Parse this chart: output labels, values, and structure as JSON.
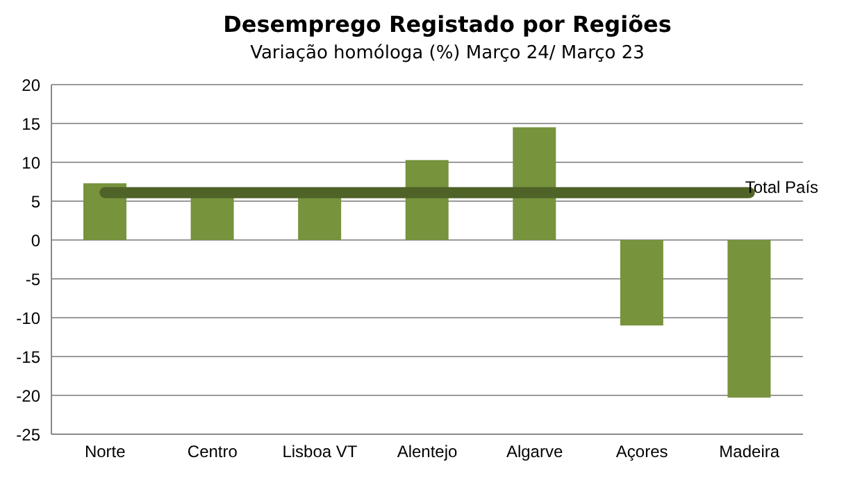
{
  "chart_data": {
    "type": "bar",
    "title": "Desemprego Registado por Regiões",
    "subtitle": "Variação homóloga (%) Março 24/ Março 23",
    "categories": [
      "Norte",
      "Centro",
      "Lisboa VT",
      "Alentejo",
      "Algarve",
      "Açores",
      "Madeira"
    ],
    "values": [
      7.3,
      5.8,
      5.8,
      10.3,
      14.5,
      -11,
      -20.3
    ],
    "color": "#77933c",
    "ylim": [
      -25,
      20
    ],
    "yticks": [
      -25,
      -20,
      -15,
      -10,
      -5,
      0,
      5,
      10,
      15,
      20
    ],
    "grid": "y",
    "legend": false,
    "ref_lines": [
      {
        "axis": "y",
        "value": 6.1,
        "label": "Total  País",
        "color": "#4f6228"
      }
    ]
  }
}
